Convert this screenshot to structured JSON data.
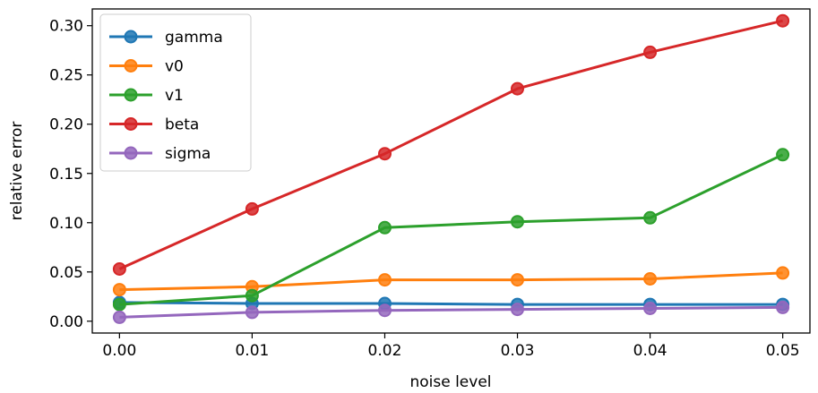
{
  "chart_data": {
    "type": "line",
    "title": "",
    "xlabel": "noise level",
    "ylabel": "relative error",
    "x": [
      0.0,
      0.01,
      0.02,
      0.03,
      0.04,
      0.05
    ],
    "xticks": [
      "0.00",
      "0.01",
      "0.02",
      "0.03",
      "0.04",
      "0.05"
    ],
    "yticks": [
      "0.00",
      "0.05",
      "0.10",
      "0.15",
      "0.20",
      "0.25",
      "0.30"
    ],
    "xlim": [
      -0.00205,
      0.05205
    ],
    "ylim": [
      -0.012,
      0.317
    ],
    "grid": false,
    "legend_position": "top-left",
    "series": [
      {
        "name": "gamma",
        "color": "#1f77b4",
        "values": [
          0.019,
          0.018,
          0.018,
          0.017,
          0.017,
          0.017
        ]
      },
      {
        "name": "v0",
        "color": "#ff7f0e",
        "values": [
          0.032,
          0.035,
          0.042,
          0.042,
          0.043,
          0.049
        ]
      },
      {
        "name": "v1",
        "color": "#2ca02c",
        "values": [
          0.017,
          0.026,
          0.095,
          0.101,
          0.105,
          0.169
        ]
      },
      {
        "name": "beta",
        "color": "#d62728",
        "values": [
          0.053,
          0.114,
          0.17,
          0.236,
          0.273,
          0.305
        ]
      },
      {
        "name": "sigma",
        "color": "#9467bd",
        "values": [
          0.004,
          0.009,
          0.011,
          0.012,
          0.013,
          0.014
        ]
      }
    ]
  }
}
